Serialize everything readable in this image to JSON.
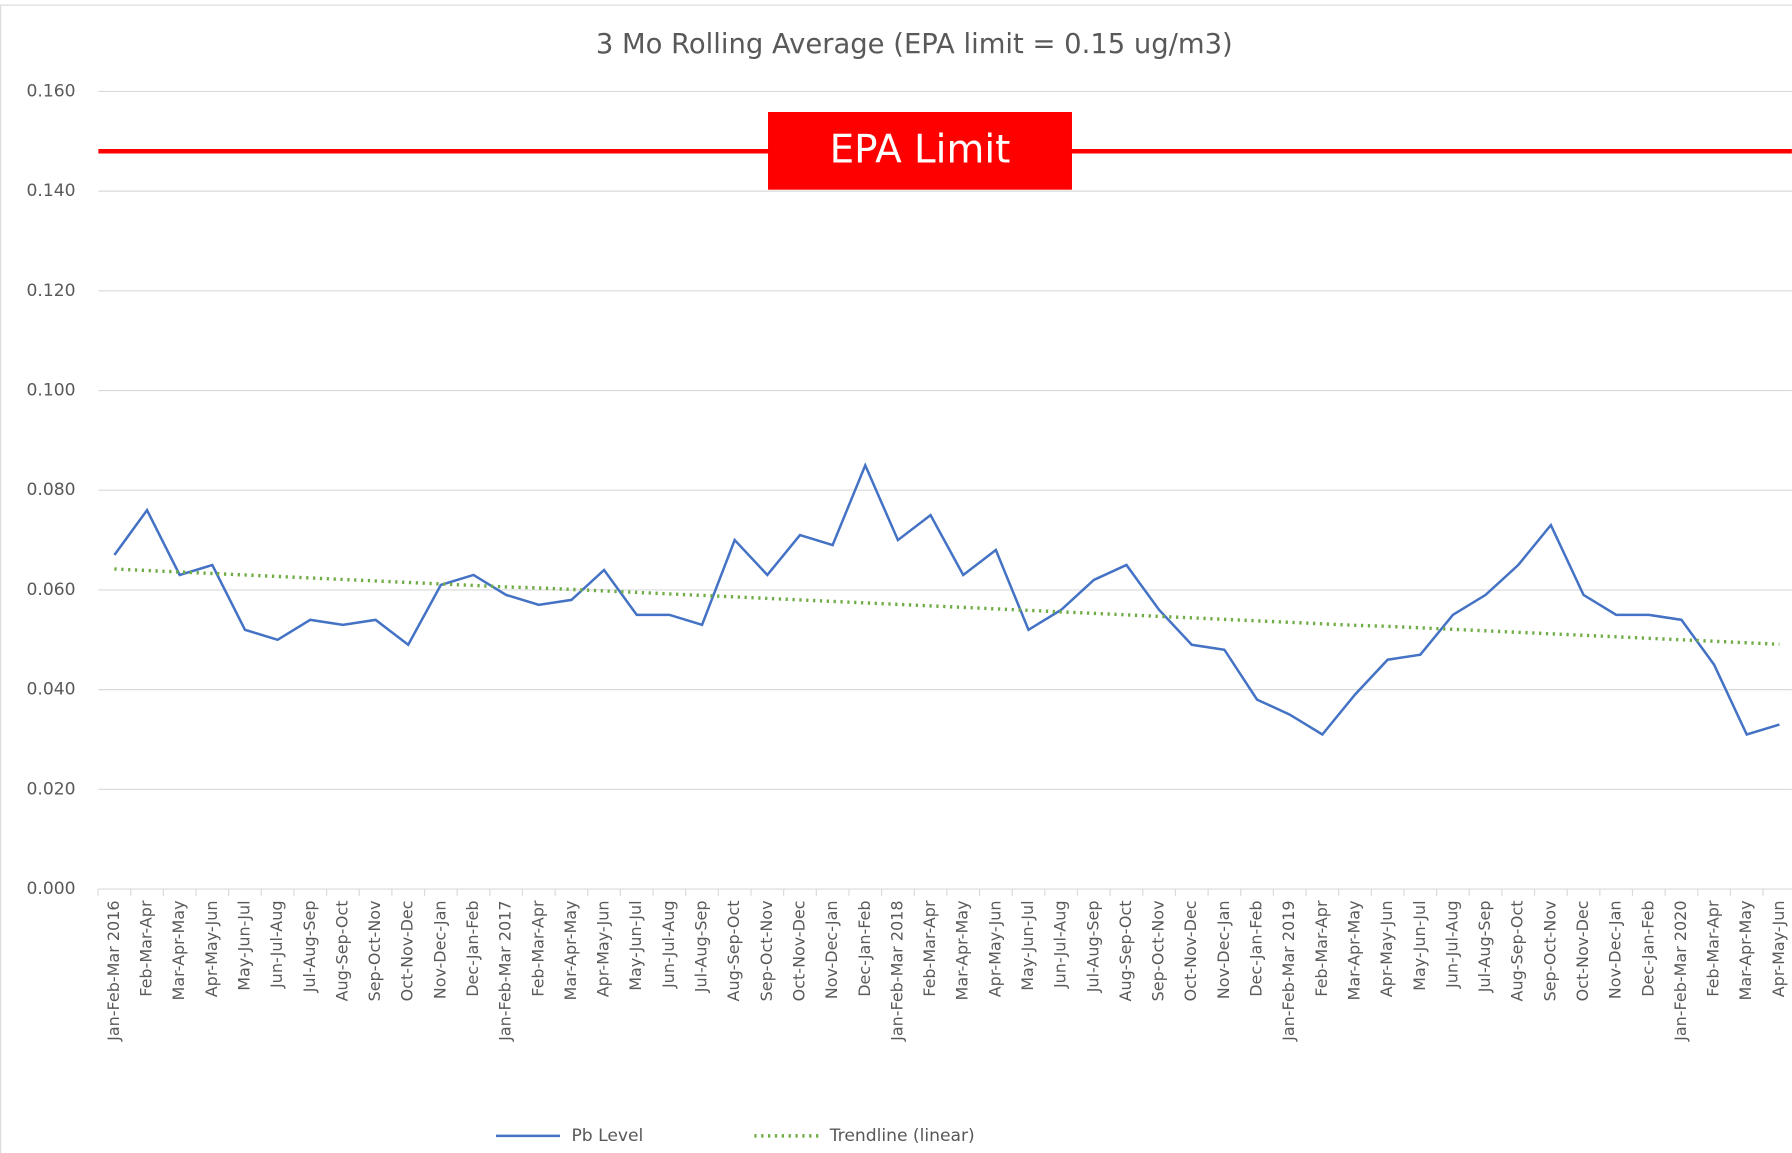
{
  "chart_data": {
    "type": "line",
    "title": "3 Mo Rolling Average (EPA limit = 0.15 ug/m3)",
    "categories": [
      "Jan-Feb-Mar 2016",
      "Feb-Mar-Apr",
      "Mar-Apr-May",
      "Apr-May-Jun",
      "May-Jun-Jul",
      "Jun-Jul-Aug",
      "Jul-Aug-Sep",
      "Aug-Sep-Oct",
      "Sep-Oct-Nov",
      "Oct-Nov-Dec",
      "Nov-Dec-Jan",
      "Dec-Jan-Feb",
      "Jan-Feb-Mar 2017",
      "Feb-Mar-Apr",
      "Mar-Apr-May",
      "Apr-May-Jun",
      "May-Jun-Jul",
      "Jun-Jul-Aug",
      "Jul-Aug-Sep",
      "Aug-Sep-Oct",
      "Sep-Oct-Nov",
      "Oct-Nov-Dec",
      "Nov-Dec-Jan",
      "Dec-Jan-Feb",
      "Jan-Feb-Mar 2018",
      "Feb-Mar-Apr",
      "Mar-Apr-May",
      "Apr-May-Jun",
      "May-Jun-Jul",
      "Jun-Jul-Aug",
      "Jul-Aug-Sep",
      "Aug-Sep-Oct",
      "Sep-Oct-Nov",
      "Oct-Nov-Dec",
      "Nov-Dec-Jan",
      "Dec-Jan-Feb",
      "Jan-Feb-Mar 2019",
      "Feb-Mar-Apr",
      "Mar-Apr-May",
      "Apr-May-Jun",
      "May-Jun-Jul",
      "Jun-Jul-Aug",
      "Jul-Aug-Sep",
      "Aug-Sep-Oct",
      "Sep-Oct-Nov",
      "Oct-Nov-Dec",
      "Nov-Dec-Jan",
      "Dec-Jan-Feb",
      "Jan-Feb-Mar 2020",
      "Feb-Mar-Apr",
      "Mar-Apr-May",
      "Apr-May-Jun"
    ],
    "series": [
      {
        "name": "Pb Level",
        "color": "#4472c4",
        "dash": false,
        "values": [
          0.067,
          0.076,
          0.063,
          0.065,
          0.052,
          0.05,
          0.054,
          0.053,
          0.054,
          0.049,
          0.061,
          0.063,
          0.059,
          0.057,
          0.058,
          0.064,
          0.055,
          0.055,
          0.053,
          0.07,
          0.063,
          0.071,
          0.069,
          0.085,
          0.07,
          0.075,
          0.063,
          0.068,
          0.052,
          0.056,
          0.062,
          0.065,
          0.056,
          0.049,
          0.048,
          0.038,
          0.035,
          0.031,
          0.039,
          0.046,
          0.047,
          0.055,
          0.059,
          0.065,
          0.073,
          0.059,
          0.055,
          0.055,
          0.054,
          0.045,
          0.031,
          0.033
        ]
      },
      {
        "name": "Trendline (linear)",
        "color": "#70ad47",
        "dash": true,
        "values": [
          0.0642,
          0.0639,
          0.0636,
          0.0633,
          0.063,
          0.0627,
          0.0624,
          0.0621,
          0.0618,
          0.0615,
          0.0612,
          0.0609,
          0.0606,
          0.0604,
          0.0601,
          0.0598,
          0.0595,
          0.0592,
          0.0589,
          0.0586,
          0.0583,
          0.058,
          0.0577,
          0.0574,
          0.0571,
          0.0568,
          0.0565,
          0.0562,
          0.0559,
          0.0556,
          0.0553,
          0.055,
          0.0547,
          0.0544,
          0.0541,
          0.0538,
          0.0535,
          0.0532,
          0.0529,
          0.0527,
          0.0524,
          0.0521,
          0.0518,
          0.0515,
          0.0512,
          0.0509,
          0.0506,
          0.0503,
          0.05,
          0.0497,
          0.0494,
          0.0491
        ]
      }
    ],
    "reference_line": {
      "label": "EPA Limit",
      "value": 0.148,
      "color": "#ff0000"
    },
    "ylim": [
      0,
      0.16
    ],
    "yticks": [
      {
        "value": 0,
        "label": "0.000"
      },
      {
        "value": 0.02,
        "label": "0.020"
      },
      {
        "value": 0.04,
        "label": "0.040"
      },
      {
        "value": 0.06,
        "label": "0.060"
      },
      {
        "value": 0.08,
        "label": "0.080"
      },
      {
        "value": 0.1,
        "label": "0.100"
      },
      {
        "value": 0.12,
        "label": "0.120"
      },
      {
        "value": 0.14,
        "label": "0.140"
      },
      {
        "value": 0.16,
        "label": "0.160"
      }
    ],
    "grid": true,
    "legend": "bottom"
  }
}
